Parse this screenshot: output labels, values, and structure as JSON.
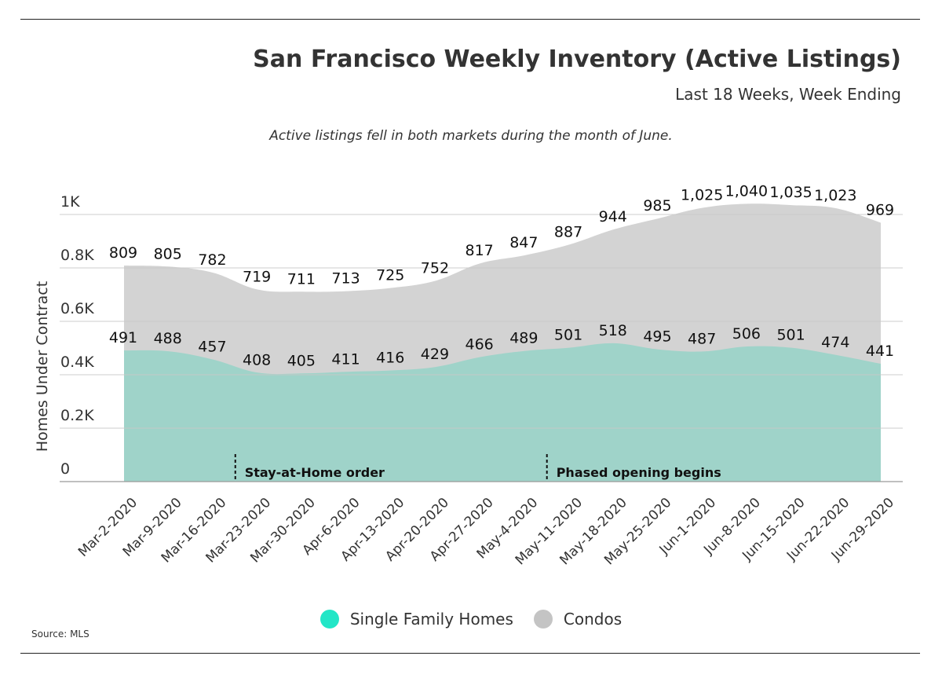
{
  "header": {
    "title": "San Francisco Weekly Inventory (Active Listings)",
    "subtitle": "Last 18 Weeks, Week Ending",
    "note": "Active listings fell in both markets during the month of June."
  },
  "footer": {
    "source": "Source: MLS"
  },
  "chart_data": {
    "type": "area",
    "title": "San Francisco Weekly Inventory (Active Listings)",
    "subtitle": "Last 18 Weeks, Week Ending",
    "ylabel": "Homes Under Contract",
    "xlabel": "",
    "ylim": [
      0,
      1000
    ],
    "yticks": [
      0,
      200,
      400,
      600,
      800,
      1000
    ],
    "ytick_labels": [
      "0",
      "0.2K",
      "0.4K",
      "0.6K",
      "0.8K",
      "1K"
    ],
    "grid": true,
    "legend_position": "bottom-center",
    "categories": [
      "Mar-2-2020",
      "Mar-9-2020",
      "Mar-16-2020",
      "Mar-23-2020",
      "Mar-30-2020",
      "Apr-6-2020",
      "Apr-13-2020",
      "Apr-20-2020",
      "Apr-27-2020",
      "May-4-2020",
      "May-11-2020",
      "May-18-2020",
      "May-25-2020",
      "Jun-1-2020",
      "Jun-8-2020",
      "Jun-15-2020",
      "Jun-22-2020",
      "Jun-29-2020"
    ],
    "series": [
      {
        "name": "Single Family Homes",
        "color": "#9fd3c9",
        "legend_color": "#22e6c7",
        "values": [
          491,
          488,
          457,
          408,
          405,
          411,
          416,
          429,
          466,
          489,
          501,
          518,
          495,
          487,
          506,
          501,
          474,
          441
        ],
        "labels": [
          "491",
          "488",
          "457",
          "408",
          "405",
          "411",
          "416",
          "429",
          "466",
          "489",
          "501",
          "518",
          "495",
          "487",
          "506",
          "501",
          "474",
          "441"
        ]
      },
      {
        "name": "Condos",
        "color": "#d3d3d3",
        "legend_color": "#c4c4c4",
        "values": [
          809,
          805,
          782,
          719,
          711,
          713,
          725,
          752,
          817,
          847,
          887,
          944,
          985,
          1025,
          1040,
          1035,
          1023,
          969
        ],
        "labels": [
          "809",
          "805",
          "782",
          "719",
          "711",
          "713",
          "725",
          "752",
          "817",
          "847",
          "887",
          "944",
          "985",
          "1,025",
          "1,040",
          "1,035",
          "1,023",
          "969"
        ]
      }
    ],
    "annotations": [
      {
        "text": "Stay-at-Home order",
        "between": [
          "Mar-16-2020",
          "Mar-23-2020"
        ]
      },
      {
        "text": "Phased opening begins",
        "between": [
          "May-4-2020",
          "May-11-2020"
        ]
      }
    ]
  }
}
